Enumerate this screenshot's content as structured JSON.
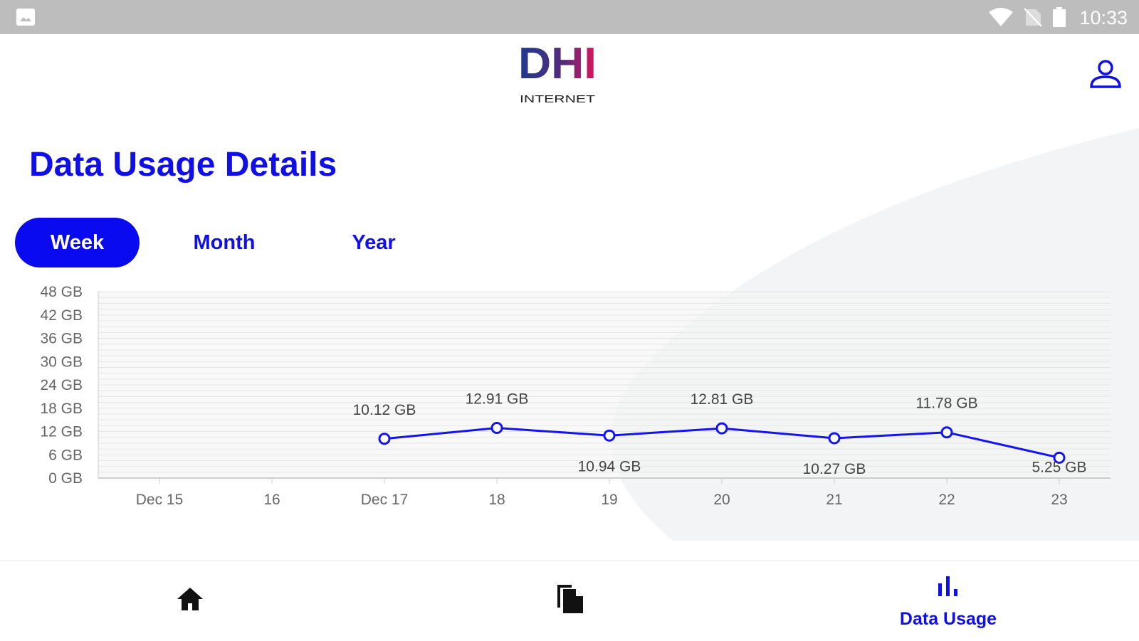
{
  "status_bar": {
    "time": "10:33"
  },
  "header": {
    "logo_text": "DHI",
    "logo_subtext": "INTERNET"
  },
  "page_title": "Data Usage Details",
  "tabs": [
    {
      "label": "Week",
      "active": true
    },
    {
      "label": "Month",
      "active": false
    },
    {
      "label": "Year",
      "active": false
    }
  ],
  "colors": {
    "accent": "#1010e6",
    "line": "#1414f0"
  },
  "chart_data": {
    "type": "line",
    "x": [
      "Dec 15",
      "16",
      "Dec 17",
      "18",
      "19",
      "20",
      "21",
      "22",
      "23"
    ],
    "series": [
      {
        "name": "Data Usage",
        "values": [
          null,
          null,
          10.12,
          12.91,
          10.94,
          12.81,
          10.27,
          11.78,
          5.25
        ]
      }
    ],
    "data_labels": [
      "",
      "",
      "10.12 GB",
      "12.91 GB",
      "10.94 GB",
      "12.81 GB",
      "10.27 GB",
      "11.78 GB",
      "5.25 GB"
    ],
    "y_ticks": [
      "0 GB",
      "6 GB",
      "12 GB",
      "18 GB",
      "24 GB",
      "30 GB",
      "36 GB",
      "42 GB",
      "48 GB"
    ],
    "ylim": [
      0,
      48
    ],
    "unit": "GB",
    "grid": true
  },
  "bottom_nav": [
    {
      "name": "home",
      "label": ""
    },
    {
      "name": "documents",
      "label": ""
    },
    {
      "name": "data-usage",
      "label": "Data Usage",
      "active": true
    }
  ]
}
